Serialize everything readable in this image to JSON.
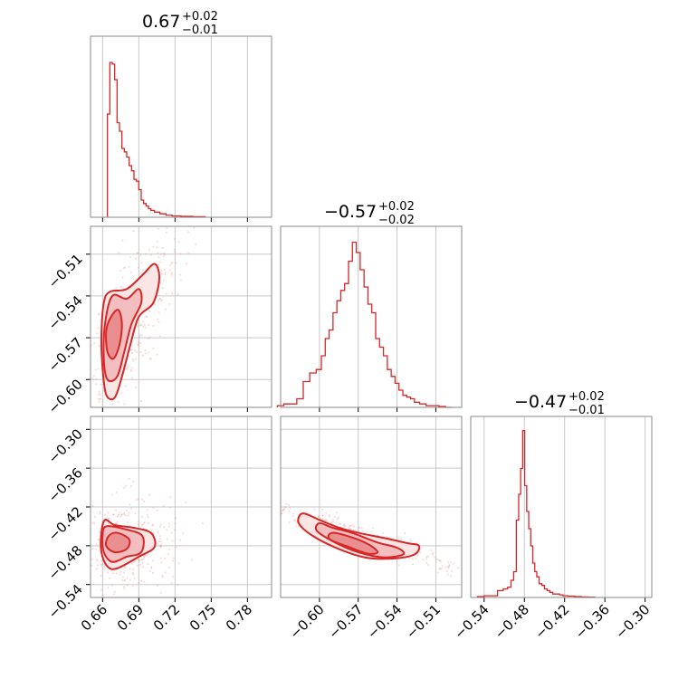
{
  "colors": {
    "accent": "#d62728",
    "fill_light": "#f2c4c5",
    "fill_mid": "#e6888a",
    "frame": "#8a8a8a",
    "grid": "#c8c8c8"
  },
  "chart_data": [
    {
      "type": "histogram",
      "panel": "p00",
      "title": {
        "main": "0.67",
        "sup": "+0.02",
        "sub": "−0.01"
      },
      "xlim": [
        0.65,
        0.8
      ],
      "x": [
        0.665,
        0.667,
        0.669,
        0.671,
        0.673,
        0.675,
        0.677,
        0.679,
        0.681,
        0.683,
        0.685,
        0.687,
        0.689,
        0.691,
        0.693,
        0.695,
        0.697,
        0.699,
        0.701,
        0.705,
        0.71,
        0.715,
        0.72,
        0.73,
        0.74
      ],
      "values": [
        0.6,
        0.9,
        0.89,
        0.8,
        0.55,
        0.5,
        0.4,
        0.38,
        0.35,
        0.3,
        0.27,
        0.22,
        0.21,
        0.16,
        0.1,
        0.08,
        0.065,
        0.05,
        0.04,
        0.03,
        0.02,
        0.012,
        0.008,
        0.005,
        0.003
      ],
      "grid": true
    },
    {
      "type": "histogram",
      "panel": "p11",
      "title": {
        "main": "−0.57",
        "sup": "+0.02",
        "sub": "−0.02"
      },
      "xlim": [
        -0.63,
        -0.49
      ],
      "x": [
        -0.63,
        -0.625,
        -0.62,
        -0.615,
        -0.61,
        -0.605,
        -0.6,
        -0.597,
        -0.594,
        -0.591,
        -0.588,
        -0.585,
        -0.582,
        -0.579,
        -0.576,
        -0.573,
        -0.57,
        -0.567,
        -0.564,
        -0.561,
        -0.558,
        -0.555,
        -0.552,
        -0.549,
        -0.546,
        -0.543,
        -0.54,
        -0.537,
        -0.534,
        -0.531,
        -0.528,
        -0.525,
        -0.52,
        -0.515,
        -0.51,
        -0.505,
        -0.5
      ],
      "values": [
        0.01,
        0.02,
        0.02,
        0.05,
        0.15,
        0.2,
        0.22,
        0.3,
        0.4,
        0.45,
        0.55,
        0.62,
        0.68,
        0.72,
        0.85,
        0.96,
        0.9,
        0.8,
        0.7,
        0.6,
        0.55,
        0.4,
        0.35,
        0.3,
        0.22,
        0.18,
        0.14,
        0.1,
        0.07,
        0.06,
        0.05,
        0.03,
        0.02,
        0.01,
        0.01,
        0.005,
        0.0
      ],
      "grid": true
    },
    {
      "type": "histogram",
      "panel": "p22",
      "title": {
        "main": "−0.47",
        "sup": "+0.02",
        "sub": "−0.01"
      },
      "xlim": [
        -0.56,
        -0.29
      ],
      "x": [
        -0.545,
        -0.535,
        -0.525,
        -0.515,
        -0.508,
        -0.502,
        -0.498,
        -0.494,
        -0.49,
        -0.487,
        -0.484,
        -0.481,
        -0.478,
        -0.475,
        -0.472,
        -0.469,
        -0.466,
        -0.463,
        -0.46,
        -0.456,
        -0.452,
        -0.448,
        -0.444,
        -0.44,
        -0.435,
        -0.43,
        -0.425,
        -0.42,
        -0.41,
        -0.4,
        -0.39,
        -0.38
      ],
      "values": [
        0.005,
        0.01,
        0.01,
        0.04,
        0.05,
        0.06,
        0.1,
        0.15,
        0.45,
        0.6,
        0.75,
        0.97,
        0.65,
        0.5,
        0.4,
        0.3,
        0.2,
        0.15,
        0.12,
        0.08,
        0.07,
        0.05,
        0.04,
        0.03,
        0.02,
        0.02,
        0.015,
        0.01,
        0.008,
        0.005,
        0.003,
        0.002
      ],
      "grid": true
    },
    {
      "type": "scatter",
      "panel": "p10",
      "xlim": [
        0.65,
        0.8
      ],
      "ylim": [
        -0.62,
        -0.49
      ],
      "center": [
        0.673,
        -0.565
      ],
      "levels": [
        {
          "level": 1,
          "points": [
            [
              0.667,
              -0.555
            ],
            [
              0.673,
              -0.55
            ],
            [
              0.676,
              -0.56
            ],
            [
              0.674,
              -0.575
            ],
            [
              0.669,
              -0.585
            ],
            [
              0.664,
              -0.58
            ],
            [
              0.663,
              -0.565
            ]
          ]
        },
        {
          "level": 2,
          "points": [
            [
              0.668,
              -0.54
            ],
            [
              0.68,
              -0.542
            ],
            [
              0.69,
              -0.535
            ],
            [
              0.692,
              -0.545
            ],
            [
              0.684,
              -0.56
            ],
            [
              0.678,
              -0.58
            ],
            [
              0.672,
              -0.598
            ],
            [
              0.664,
              -0.6
            ],
            [
              0.661,
              -0.585
            ],
            [
              0.662,
              -0.56
            ]
          ]
        },
        {
          "level": 3,
          "points": [
            [
              0.666,
              -0.537
            ],
            [
              0.68,
              -0.535
            ],
            [
              0.693,
              -0.525
            ],
            [
              0.703,
              -0.517
            ],
            [
              0.707,
              -0.527
            ],
            [
              0.702,
              -0.545
            ],
            [
              0.69,
              -0.555
            ],
            [
              0.683,
              -0.575
            ],
            [
              0.676,
              -0.598
            ],
            [
              0.67,
              -0.613
            ],
            [
              0.663,
              -0.611
            ],
            [
              0.66,
              -0.592
            ],
            [
              0.659,
              -0.57
            ],
            [
              0.661,
              -0.545
            ]
          ]
        }
      ],
      "grid": true
    },
    {
      "type": "scatter",
      "panel": "p20",
      "xlim": [
        0.65,
        0.8
      ],
      "ylim": [
        -0.56,
        -0.28
      ],
      "center": [
        0.673,
        -0.475
      ],
      "levels": [
        {
          "level": 1,
          "points": [
            [
              0.665,
              -0.465
            ],
            [
              0.672,
              -0.46
            ],
            [
              0.682,
              -0.47
            ],
            [
              0.68,
              -0.485
            ],
            [
              0.67,
              -0.49
            ],
            [
              0.663,
              -0.48
            ]
          ]
        },
        {
          "level": 2,
          "points": [
            [
              0.663,
              -0.45
            ],
            [
              0.68,
              -0.455
            ],
            [
              0.693,
              -0.465
            ],
            [
              0.692,
              -0.49
            ],
            [
              0.68,
              -0.497
            ],
            [
              0.668,
              -0.505
            ],
            [
              0.661,
              -0.49
            ],
            [
              0.66,
              -0.465
            ]
          ]
        },
        {
          "level": 3,
          "points": [
            [
              0.662,
              -0.44
            ],
            [
              0.67,
              -0.448
            ],
            [
              0.685,
              -0.452
            ],
            [
              0.7,
              -0.46
            ],
            [
              0.703,
              -0.482
            ],
            [
              0.69,
              -0.497
            ],
            [
              0.672,
              -0.515
            ],
            [
              0.664,
              -0.512
            ],
            [
              0.659,
              -0.49
            ],
            [
              0.659,
              -0.46
            ]
          ]
        }
      ],
      "grid": true
    },
    {
      "type": "scatter",
      "panel": "p21",
      "xlim": [
        -0.63,
        -0.49
      ],
      "ylim": [
        -0.56,
        -0.28
      ],
      "center": [
        -0.575,
        -0.47
      ],
      "levels": [
        {
          "level": 1,
          "points": [
            [
              -0.59,
              -0.46
            ],
            [
              -0.575,
              -0.467
            ],
            [
              -0.562,
              -0.478
            ],
            [
              -0.555,
              -0.49
            ],
            [
              -0.563,
              -0.492
            ],
            [
              -0.577,
              -0.482
            ],
            [
              -0.592,
              -0.47
            ]
          ]
        },
        {
          "level": 2,
          "points": [
            [
              -0.6,
              -0.445
            ],
            [
              -0.59,
              -0.452
            ],
            [
              -0.575,
              -0.46
            ],
            [
              -0.555,
              -0.475
            ],
            [
              -0.54,
              -0.483
            ],
            [
              -0.535,
              -0.493
            ],
            [
              -0.55,
              -0.498
            ],
            [
              -0.57,
              -0.49
            ],
            [
              -0.588,
              -0.475
            ],
            [
              -0.602,
              -0.457
            ]
          ]
        },
        {
          "level": 3,
          "points": [
            [
              -0.613,
              -0.43
            ],
            [
              -0.6,
              -0.44
            ],
            [
              -0.585,
              -0.452
            ],
            [
              -0.57,
              -0.46
            ],
            [
              -0.55,
              -0.468
            ],
            [
              -0.532,
              -0.476
            ],
            [
              -0.523,
              -0.48
            ],
            [
              -0.527,
              -0.494
            ],
            [
              -0.545,
              -0.5
            ],
            [
              -0.565,
              -0.498
            ],
            [
              -0.585,
              -0.485
            ],
            [
              -0.605,
              -0.465
            ],
            [
              -0.616,
              -0.445
            ]
          ]
        }
      ],
      "grid": true
    }
  ],
  "axes": {
    "p00": {
      "xticks": [],
      "yticks": []
    },
    "p10": {
      "xticks": [],
      "yticks": [
        {
          "v": -0.51,
          "label": "−0.51"
        },
        {
          "v": -0.54,
          "label": "−0.54"
        },
        {
          "v": -0.57,
          "label": "−0.57"
        },
        {
          "v": -0.6,
          "label": "−0.60"
        }
      ]
    },
    "p11": {
      "xticks": [],
      "yticks": []
    },
    "p20": {
      "xticks": [
        {
          "v": 0.66,
          "label": "0.66"
        },
        {
          "v": 0.69,
          "label": "0.69"
        },
        {
          "v": 0.72,
          "label": "0.72"
        },
        {
          "v": 0.75,
          "label": "0.75"
        },
        {
          "v": 0.78,
          "label": "0.78"
        }
      ],
      "yticks": [
        {
          "v": -0.3,
          "label": "−0.30"
        },
        {
          "v": -0.36,
          "label": "−0.36"
        },
        {
          "v": -0.42,
          "label": "−0.42"
        },
        {
          "v": -0.48,
          "label": "−0.48"
        },
        {
          "v": -0.54,
          "label": "−0.54"
        }
      ]
    },
    "p21": {
      "xticks": [
        {
          "v": -0.6,
          "label": "−0.60"
        },
        {
          "v": -0.57,
          "label": "−0.57"
        },
        {
          "v": -0.54,
          "label": "−0.54"
        },
        {
          "v": -0.51,
          "label": "−0.51"
        }
      ],
      "yticks": []
    },
    "p22": {
      "xticks": [
        {
          "v": -0.54,
          "label": "−0.54"
        },
        {
          "v": -0.48,
          "label": "−0.48"
        },
        {
          "v": -0.42,
          "label": "−0.42"
        },
        {
          "v": -0.36,
          "label": "−0.36"
        },
        {
          "v": -0.3,
          "label": "−0.30"
        }
      ],
      "yticks": []
    }
  }
}
